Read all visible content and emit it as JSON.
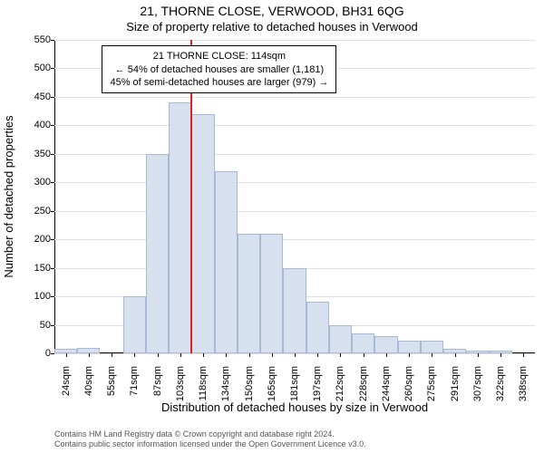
{
  "title": "21, THORNE CLOSE, VERWOOD, BH31 6QG",
  "subtitle": "Size of property relative to detached houses in Verwood",
  "ylabel": "Number of detached properties",
  "xlabel": "Distribution of detached houses by size in Verwood",
  "attribution_line1": "Contains HM Land Registry data © Crown copyright and database right 2024.",
  "attribution_line2": "Contains public sector information licensed under the Open Government Licence v3.0.",
  "chart": {
    "type": "histogram",
    "background_color": "#ffffff",
    "grid_color": "#e0e0e0",
    "axis_color": "#000000",
    "bar_fill": "#d7e0ef",
    "bar_border": "#a8b9d6",
    "marker_color": "#e02020",
    "ylim": [
      0,
      550
    ],
    "yticks": [
      0,
      50,
      100,
      150,
      200,
      250,
      300,
      350,
      400,
      450,
      500,
      550
    ],
    "tick_fontsize": 11,
    "label_fontsize": 13,
    "title_fontsize": 14,
    "x_min": 20,
    "x_max": 350,
    "bin_width": 15.6,
    "x_tick_labels": [
      "24sqm",
      "40sqm",
      "55sqm",
      "71sqm",
      "87sqm",
      "103sqm",
      "118sqm",
      "134sqm",
      "150sqm",
      "165sqm",
      "181sqm",
      "197sqm",
      "212sqm",
      "228sqm",
      "244sqm",
      "260sqm",
      "275sqm",
      "291sqm",
      "307sqm",
      "322sqm",
      "338sqm"
    ],
    "values": [
      8,
      10,
      0,
      100,
      350,
      440,
      420,
      320,
      210,
      210,
      150,
      90,
      50,
      35,
      30,
      22,
      22,
      8,
      5,
      5,
      0
    ],
    "marker_x": 114,
    "infobox": {
      "line1": "21 THORNE CLOSE: 114sqm",
      "line2": "← 54% of detached houses are smaller (1,181)",
      "line3": "45% of semi-detached houses are larger (979) →",
      "left_bin_index": 2,
      "top_y": 540
    }
  }
}
